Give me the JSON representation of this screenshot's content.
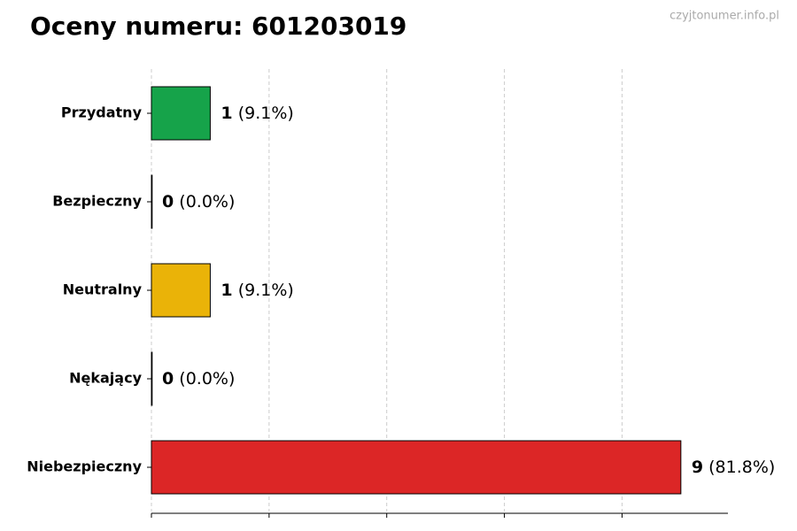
{
  "chart_data": {
    "type": "bar",
    "orientation": "horizontal",
    "title": "Oceny numeru: 601203019",
    "watermark": "czyjtonumer.info.pl",
    "categories": [
      "Przydatny",
      "Bezpieczny",
      "Neutralny",
      "Nękający",
      "Niebezpieczny"
    ],
    "values": [
      1,
      0,
      1,
      0,
      9
    ],
    "percent_labels": [
      "(9.1%)",
      "(0.0%)",
      "(9.1%)",
      "(0.0%)",
      "(81.8%)"
    ],
    "colors": [
      "#16a34a",
      "#9ca3af",
      "#eab308",
      "#9ca3af",
      "#dc2626"
    ],
    "xlim": [
      0,
      9.8
    ],
    "xticks": [
      0,
      2,
      4,
      6,
      8
    ],
    "grid": true
  }
}
